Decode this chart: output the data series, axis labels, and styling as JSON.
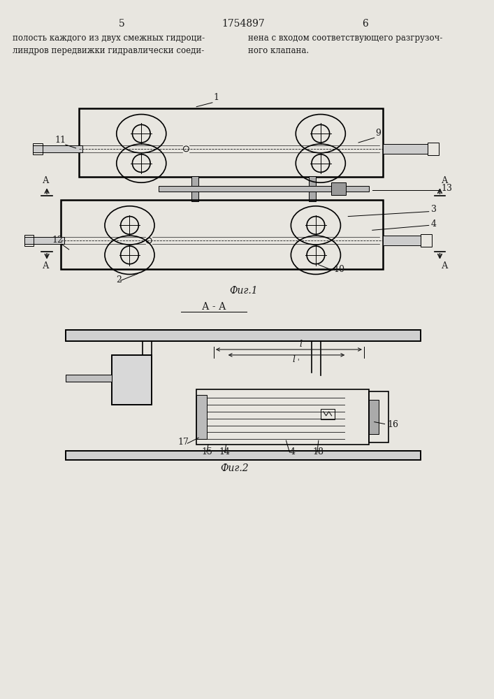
{
  "page_numbers": [
    "5",
    "1754897",
    "6"
  ],
  "text_left": "полость каждого из двух смежных гидроци-\nлиндров передвижки гидравлически соеди-",
  "text_right": "нена с входом соответствующего разгрузоч-\nного клапана.",
  "fig1_label": "Фиг.1",
  "fig2_label": "Фиг.2",
  "section_label": "А - А",
  "bg_color": "#e8e6e0",
  "line_color": "#1a1a1a",
  "font_size": 9,
  "label1": "1",
  "label2": "2",
  "label3": "3",
  "label4": "4",
  "label9": "9",
  "label10": "10",
  "label11": "11",
  "label12": "12",
  "label13": "13",
  "label14": "14",
  "label15": "15",
  "label16": "16",
  "label17": "17",
  "label18": "18",
  "dim_l": "l",
  "dim_l2": "l",
  "arr_label": "А"
}
